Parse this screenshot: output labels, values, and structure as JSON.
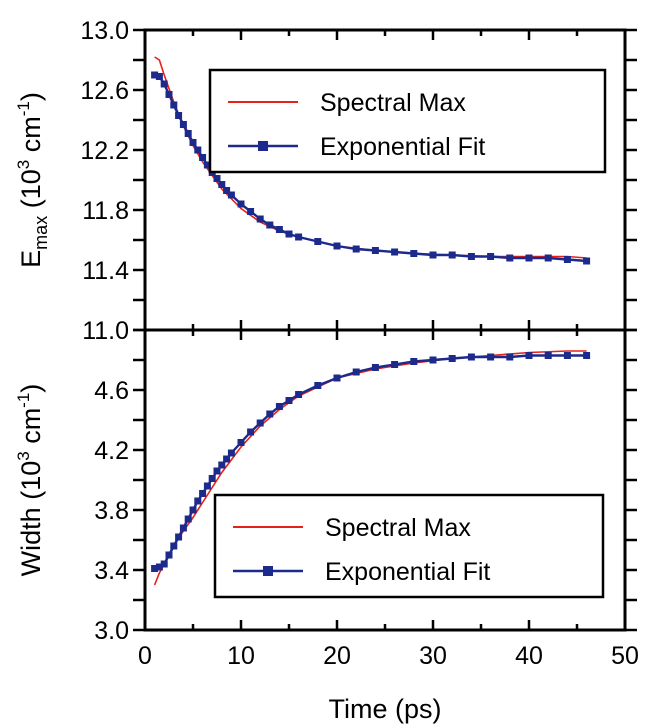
{
  "colors": {
    "spectral": "#e8201a",
    "fit": "#1c2a8c",
    "axis": "#000000"
  },
  "chart_data": [
    {
      "type": "line",
      "panel": "top",
      "ylabel_main": "E",
      "ylabel_sub": "max",
      "ylabel_rest": " (10",
      "ylabel_sup": "3",
      "ylabel_end": " cm",
      "ylabel_sup2": "-1",
      "ylabel_close": ")",
      "xlim": [
        0,
        50
      ],
      "ylim": [
        11.0,
        13.0
      ],
      "yticks": [
        11.0,
        11.4,
        11.8,
        12.2,
        12.6,
        13.0
      ],
      "ytick_labels": [
        "11.0",
        "11.4",
        "11.8",
        "12.2",
        "12.6",
        "13.0"
      ],
      "legend_position": "top-right",
      "series": [
        {
          "name": "Spectral Max",
          "style": "line",
          "x": [
            1.0,
            1.5,
            2.0,
            3.0,
            4.0,
            5.0,
            6.0,
            8.0,
            10.0,
            12.0,
            14.0,
            16.0,
            18.0,
            20.0,
            24.0,
            28.0,
            32.0,
            36.0,
            40.0,
            44.0,
            46.0
          ],
          "y": [
            12.82,
            12.8,
            12.7,
            12.52,
            12.36,
            12.23,
            12.12,
            11.94,
            11.81,
            11.72,
            11.66,
            11.62,
            11.59,
            11.56,
            11.53,
            11.51,
            11.5,
            11.49,
            11.49,
            11.49,
            11.48
          ]
        },
        {
          "name": "Exponential Fit",
          "style": "line-marker",
          "x": [
            1.0,
            1.5,
            2.0,
            2.5,
            3.0,
            3.5,
            4.0,
            4.5,
            5.0,
            5.5,
            6.0,
            6.5,
            7.0,
            7.5,
            8.0,
            8.5,
            9.0,
            10.0,
            11.0,
            12.0,
            13.0,
            14.0,
            15.0,
            16.0,
            18.0,
            20.0,
            22.0,
            24.0,
            26.0,
            28.0,
            30.0,
            32.0,
            34.0,
            36.0,
            38.0,
            40.0,
            42.0,
            44.0,
            46.0
          ],
          "y": [
            12.7,
            12.69,
            12.64,
            12.57,
            12.5,
            12.43,
            12.37,
            12.31,
            12.25,
            12.2,
            12.15,
            12.1,
            12.05,
            12.01,
            11.97,
            11.93,
            11.9,
            11.84,
            11.79,
            11.74,
            11.7,
            11.67,
            11.64,
            11.62,
            11.59,
            11.56,
            11.54,
            11.53,
            11.52,
            11.51,
            11.5,
            11.5,
            11.49,
            11.49,
            11.48,
            11.48,
            11.48,
            11.47,
            11.46
          ]
        }
      ]
    },
    {
      "type": "line",
      "panel": "bottom",
      "ylabel_main": "Width (10",
      "ylabel_sup": "3",
      "ylabel_end": " cm",
      "ylabel_sup2": "-1",
      "ylabel_close": ")",
      "xlabel": "Time (ps)",
      "xlim": [
        0,
        50
      ],
      "ylim": [
        3.0,
        5.0
      ],
      "xticks": [
        0,
        10,
        20,
        30,
        40,
        50
      ],
      "xtick_labels": [
        "0",
        "10",
        "20",
        "30",
        "40",
        "50"
      ],
      "yticks": [
        3.0,
        3.4,
        3.8,
        4.2,
        4.6
      ],
      "ytick_labels": [
        "3.0",
        "3.4",
        "3.8",
        "4.2",
        "4.6"
      ],
      "legend_position": "bottom-right",
      "series": [
        {
          "name": "Spectral Max",
          "style": "line",
          "x": [
            1.0,
            1.5,
            2.0,
            3.0,
            4.0,
            5.0,
            6.0,
            8.0,
            10.0,
            12.0,
            14.0,
            16.0,
            18.0,
            20.0,
            24.0,
            28.0,
            32.0,
            36.0,
            40.0,
            44.0,
            46.0
          ],
          "y": [
            3.3,
            3.38,
            3.44,
            3.56,
            3.66,
            3.75,
            3.85,
            4.05,
            4.22,
            4.36,
            4.47,
            4.56,
            4.62,
            4.68,
            4.74,
            4.78,
            4.81,
            4.83,
            4.85,
            4.86,
            4.86
          ]
        },
        {
          "name": "Exponential Fit",
          "style": "line-marker",
          "x": [
            1.0,
            1.5,
            2.0,
            2.5,
            3.0,
            3.5,
            4.0,
            4.5,
            5.0,
            5.5,
            6.0,
            6.5,
            7.0,
            7.5,
            8.0,
            8.5,
            9.0,
            10.0,
            11.0,
            12.0,
            13.0,
            14.0,
            15.0,
            16.0,
            18.0,
            20.0,
            22.0,
            24.0,
            26.0,
            28.0,
            30.0,
            32.0,
            34.0,
            36.0,
            38.0,
            40.0,
            42.0,
            44.0,
            46.0
          ],
          "y": [
            3.41,
            3.42,
            3.44,
            3.5,
            3.56,
            3.62,
            3.68,
            3.74,
            3.8,
            3.86,
            3.91,
            3.96,
            4.01,
            4.06,
            4.1,
            4.14,
            4.18,
            4.25,
            4.32,
            4.38,
            4.44,
            4.49,
            4.53,
            4.57,
            4.63,
            4.68,
            4.72,
            4.75,
            4.77,
            4.79,
            4.8,
            4.81,
            4.82,
            4.82,
            4.82,
            4.83,
            4.83,
            4.83,
            4.83
          ]
        }
      ]
    }
  ]
}
